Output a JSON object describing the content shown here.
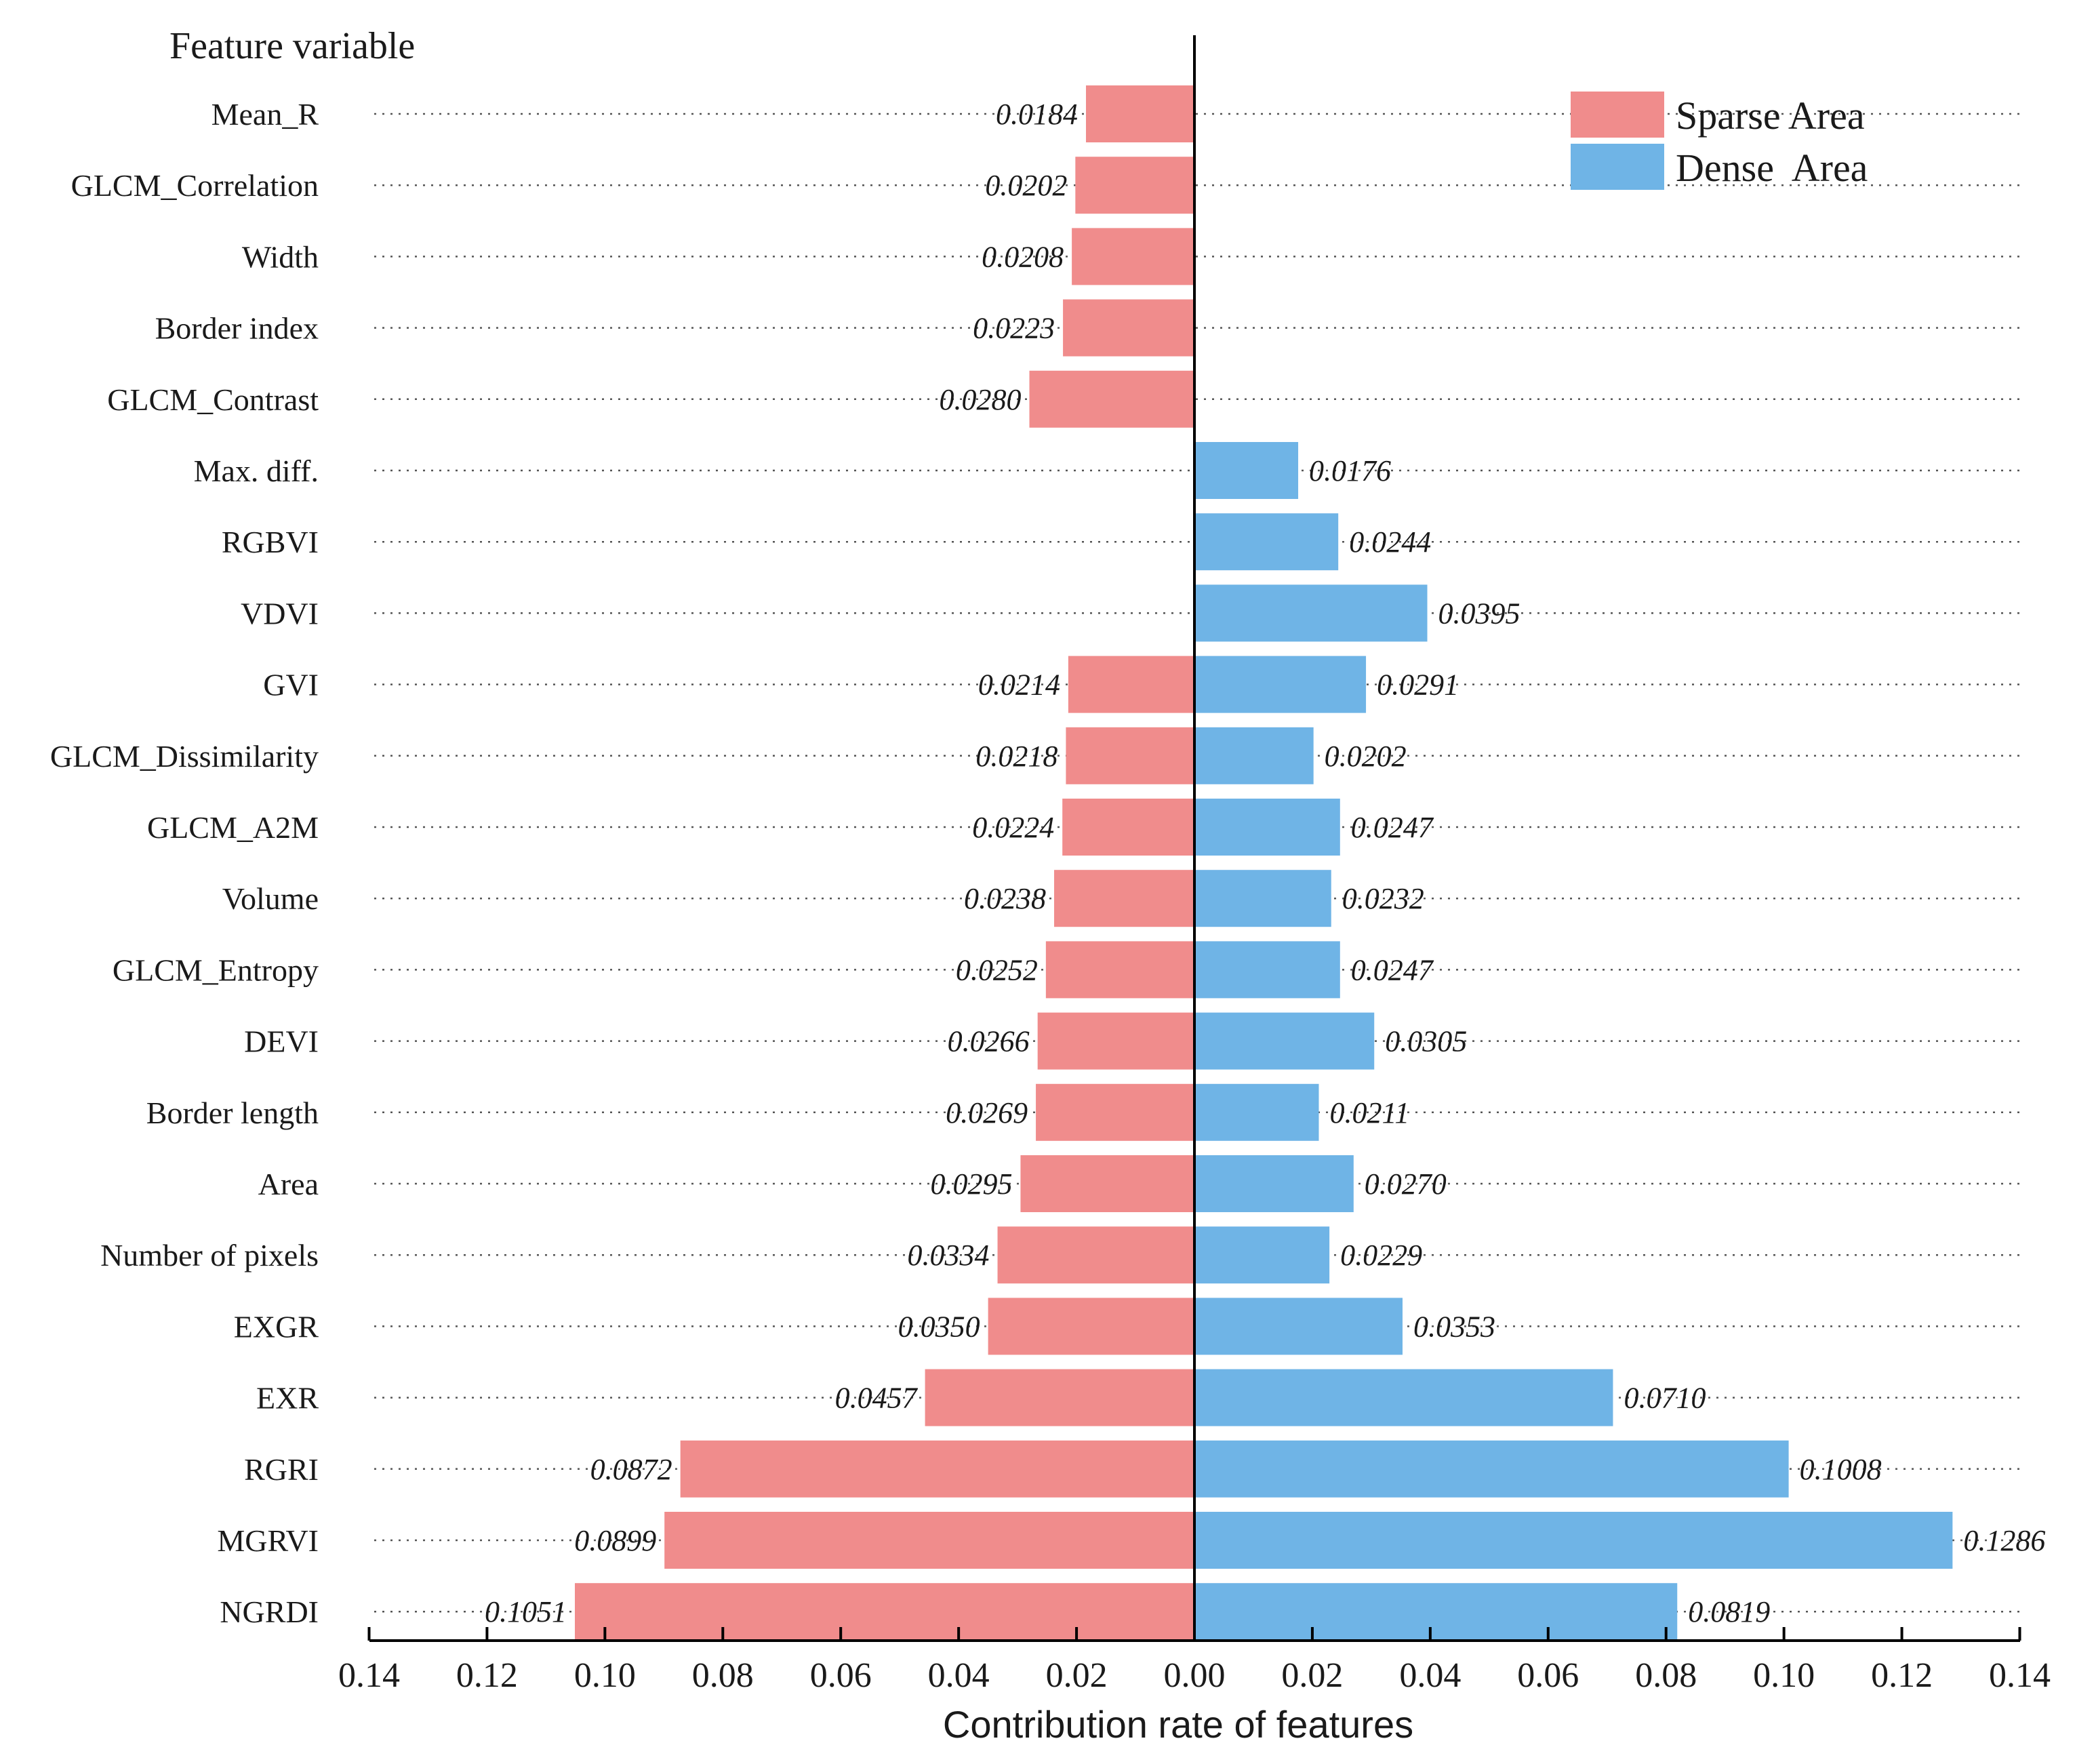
{
  "chart_data": {
    "type": "bar",
    "orientation": "horizontal-diverging",
    "ylabel": "Feature variable",
    "xlabel": "Contribution rate of features",
    "xlim": [
      -0.14,
      0.14
    ],
    "xticks": [
      -0.14,
      -0.12,
      -0.1,
      -0.08,
      -0.06,
      -0.04,
      -0.02,
      0.0,
      0.02,
      0.04,
      0.06,
      0.08,
      0.1,
      0.12,
      0.14
    ],
    "tick_labels": [
      "0.14",
      "0.12",
      "0.10",
      "0.08",
      "0.06",
      "0.04",
      "0.02",
      "0.00",
      "0.02",
      "0.04",
      "0.06",
      "0.08",
      "0.10",
      "0.12",
      "0.14"
    ],
    "legend_position": "top-right",
    "categories": [
      "Mean_R",
      "GLCM_Correlation",
      "Width",
      "Border index",
      "GLCM_Contrast",
      "Max. diff.",
      "RGBVI",
      "VDVI",
      "GVI",
      "GLCM_Dissimilarity",
      "GLCM_A2M",
      "Volume",
      "GLCM_Entropy",
      "DEVI",
      "Border length",
      "Area",
      "Number of pixels",
      "EXGR",
      "EXR",
      "RGRI",
      "MGRVI",
      "NGRDI"
    ],
    "series": [
      {
        "name": "Sparse Area",
        "side": "left",
        "color": "#f08c8c",
        "values": [
          0.0184,
          0.0202,
          0.0208,
          0.0223,
          0.028,
          null,
          null,
          null,
          0.0214,
          0.0218,
          0.0224,
          0.0238,
          0.0252,
          0.0266,
          0.0269,
          0.0295,
          0.0334,
          0.035,
          0.0457,
          0.0872,
          0.0899,
          0.1051
        ],
        "labels": [
          "0.0184",
          "0.0202",
          "0.0208",
          "0.0223",
          "0.0280",
          null,
          null,
          null,
          "0.0214",
          "0.0218",
          "0.0224",
          "0.0238",
          "0.0252",
          "0.0266",
          "0.0269",
          "0.0295",
          "0.0334",
          "0.0350",
          "0.0457",
          "0.0872",
          "0.0899",
          "0.1051"
        ]
      },
      {
        "name": "Dense  Area",
        "side": "right",
        "color": "#6fb4e6",
        "values": [
          null,
          null,
          null,
          null,
          null,
          0.0176,
          0.0244,
          0.0395,
          0.0291,
          0.0202,
          0.0247,
          0.0232,
          0.0247,
          0.0305,
          0.0211,
          0.027,
          0.0229,
          0.0353,
          0.071,
          0.1008,
          0.1286,
          0.0819
        ],
        "labels": [
          null,
          null,
          null,
          null,
          null,
          "0.0176",
          "0.0244",
          "0.0395",
          "0.0291",
          "0.0202",
          "0.0247",
          "0.0232",
          "0.0247",
          "0.0305",
          "0.0211",
          "0.0270",
          "0.0229",
          "0.0353",
          "0.0710",
          "0.1008",
          "0.1286",
          "0.0819"
        ]
      }
    ]
  }
}
